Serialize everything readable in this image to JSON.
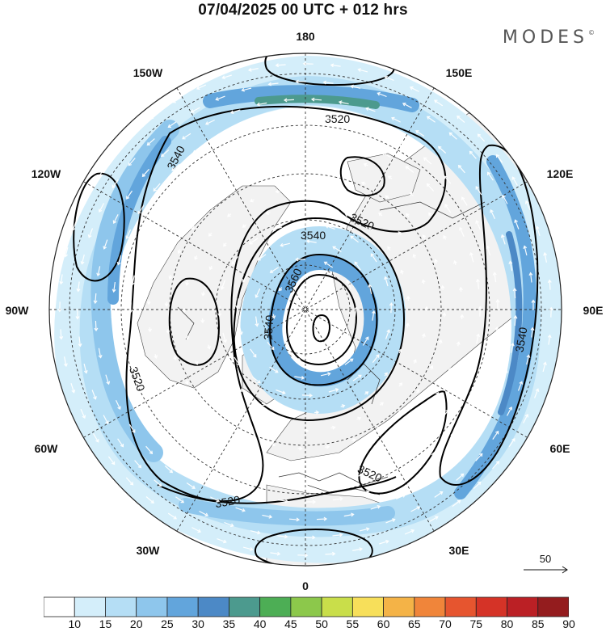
{
  "header": {
    "title": "07/04/2025  00 UTC  + 012 hrs",
    "brand": "MODES",
    "brand_mark": "©"
  },
  "map": {
    "projection": "polar-stereographic-north",
    "longitude_labels": {
      "top": "180",
      "top_left": "150W",
      "top_right": "150E",
      "upper_left": "120W",
      "upper_right": "120E",
      "left": "90W",
      "right": "90E",
      "lower_left": "60W",
      "lower_right": "60E",
      "bottom_left": "30W",
      "bottom_right": "30E",
      "bottom": "0"
    },
    "contour_labels": [
      "3520",
      "3540",
      "3520",
      "3540",
      "3560",
      "3540",
      "3520",
      "3520",
      "3540",
      "3520"
    ],
    "colors": {
      "land": "#f2f2f2",
      "c10_15": "#d4eefa",
      "c15_20": "#b5def5",
      "c20_25": "#8ec6ec",
      "c25_30": "#62a5dc",
      "c30_35": "#4c89c6",
      "c35_40": "#4c9a8e"
    }
  },
  "vector_reference": {
    "label": "50"
  },
  "colorbar": {
    "labels": [
      "10",
      "15",
      "20",
      "25",
      "30",
      "35",
      "40",
      "45",
      "50",
      "55",
      "60",
      "65",
      "70",
      "75",
      "80",
      "85",
      "90"
    ],
    "colors": [
      "#ffffff",
      "#d4eefa",
      "#b5def5",
      "#8ec6ec",
      "#62a5dc",
      "#4c89c6",
      "#4c9a8e",
      "#4dae55",
      "#8cc84b",
      "#c9de4a",
      "#f7df5a",
      "#f4b347",
      "#f0853a",
      "#e6552f",
      "#d53327",
      "#bb2025",
      "#941c1e"
    ]
  }
}
